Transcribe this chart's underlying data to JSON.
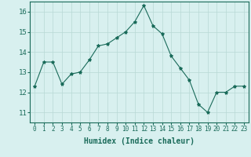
{
  "x": [
    0,
    1,
    2,
    3,
    4,
    5,
    6,
    7,
    8,
    9,
    10,
    11,
    12,
    13,
    14,
    15,
    16,
    17,
    18,
    19,
    20,
    21,
    22,
    23
  ],
  "y": [
    12.3,
    13.5,
    13.5,
    12.4,
    12.9,
    13.0,
    13.6,
    14.3,
    14.4,
    14.7,
    15.0,
    15.5,
    16.3,
    15.3,
    14.9,
    13.8,
    13.2,
    12.6,
    11.4,
    11.0,
    12.0,
    12.0,
    12.3,
    12.3
  ],
  "line_color": "#1a6b5a",
  "marker": "*",
  "marker_size": 3,
  "bg_color": "#d8f0ef",
  "grid_color": "#b8d8d5",
  "xlabel": "Humidex (Indice chaleur)",
  "xlim": [
    -0.5,
    23.5
  ],
  "ylim": [
    10.5,
    16.5
  ],
  "yticks": [
    11,
    12,
    13,
    14,
    15,
    16
  ],
  "xticks": [
    0,
    1,
    2,
    3,
    4,
    5,
    6,
    7,
    8,
    9,
    10,
    11,
    12,
    13,
    14,
    15,
    16,
    17,
    18,
    19,
    20,
    21,
    22,
    23
  ],
  "tick_color": "#1a6b5a",
  "label_color": "#1a6b5a",
  "spine_color": "#1a6b5a"
}
